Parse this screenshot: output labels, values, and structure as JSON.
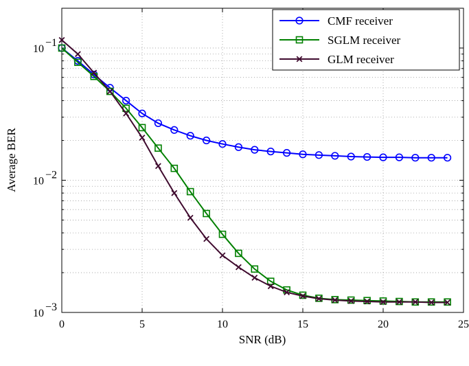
{
  "chart_data": {
    "type": "line",
    "xlabel": "SNR (dB)",
    "ylabel": "Average BER",
    "xlim": [
      0,
      25
    ],
    "ylim": [
      0.001,
      0.2
    ],
    "yscale": "log",
    "grid": true,
    "legend_position": "top-right",
    "x_ticks": [
      0,
      5,
      10,
      15,
      20,
      25
    ],
    "x_tick_labels": [
      "0",
      "5",
      "10",
      "15",
      "20",
      "25"
    ],
    "y_ticks": [
      0.001,
      0.01,
      0.1
    ],
    "y_tick_labels": [
      {
        "base": "10",
        "exp": "−3"
      },
      {
        "base": "10",
        "exp": "−2"
      },
      {
        "base": "10",
        "exp": "−1"
      }
    ],
    "x": [
      0,
      1,
      2,
      3,
      4,
      5,
      6,
      7,
      8,
      9,
      10,
      11,
      12,
      13,
      14,
      15,
      16,
      17,
      18,
      19,
      20,
      21,
      22,
      23,
      24
    ],
    "series": [
      {
        "name": "CMF receiver",
        "color": "#0000ff",
        "marker": "circle",
        "values": [
          0.1,
          0.08,
          0.063,
          0.05,
          0.04,
          0.032,
          0.027,
          0.024,
          0.0217,
          0.02,
          0.0188,
          0.0178,
          0.017,
          0.0165,
          0.0161,
          0.0157,
          0.0155,
          0.0153,
          0.0151,
          0.015,
          0.0149,
          0.0149,
          0.0148,
          0.0148,
          0.0148
        ]
      },
      {
        "name": "SGLM receiver",
        "color": "#008000",
        "marker": "square",
        "values": [
          0.1,
          0.078,
          0.061,
          0.047,
          0.035,
          0.025,
          0.0175,
          0.0123,
          0.0082,
          0.0056,
          0.0039,
          0.0028,
          0.00213,
          0.00172,
          0.00148,
          0.00135,
          0.00128,
          0.00125,
          0.00124,
          0.00123,
          0.00122,
          0.00121,
          0.0012,
          0.0012,
          0.0012
        ]
      },
      {
        "name": "GLM receiver",
        "color": "#3f0a2e",
        "marker": "x",
        "values": [
          0.115,
          0.09,
          0.065,
          0.047,
          0.032,
          0.021,
          0.0128,
          0.008,
          0.0052,
          0.0036,
          0.0027,
          0.0022,
          0.00183,
          0.00158,
          0.00142,
          0.00133,
          0.00127,
          0.00124,
          0.00122,
          0.00121,
          0.0012,
          0.0012,
          0.0012,
          0.00119,
          0.00119
        ]
      }
    ]
  }
}
